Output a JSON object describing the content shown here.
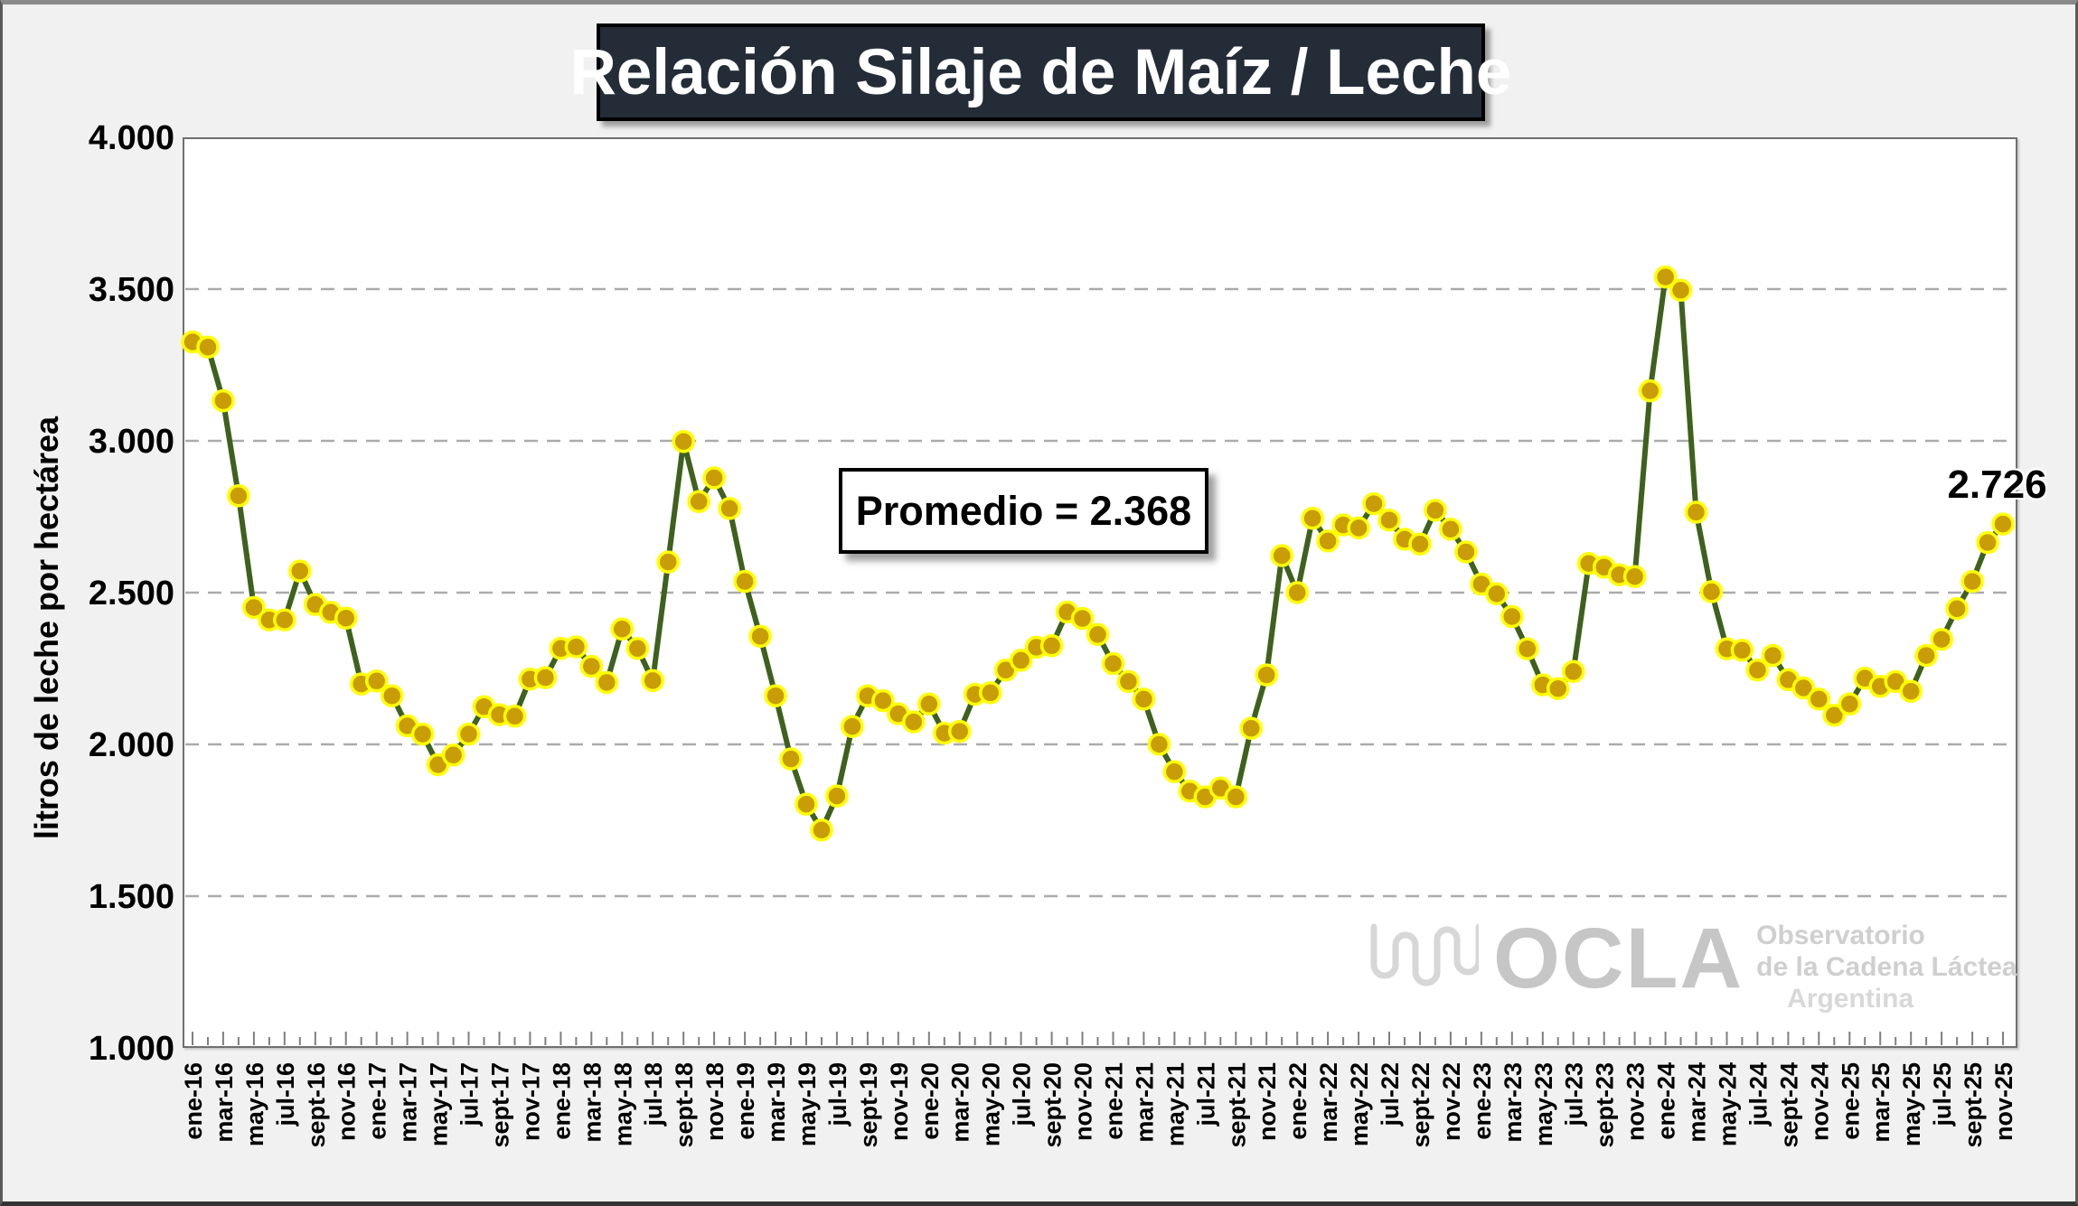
{
  "title": "Relación Silaje de Maíz / Leche",
  "y_axis": {
    "title": "litros de leche por hectárea",
    "tick_labels": [
      "4.000",
      "3.500",
      "3.000",
      "2.500",
      "2.000",
      "1.500",
      "1.000"
    ]
  },
  "annotation": {
    "promedio_label": "Promedio = 2.368",
    "last_value_label": "2.726"
  },
  "watermark": {
    "brand": "OCLA",
    "line1": "Observatorio",
    "line2": "de la Cadena Láctea",
    "line3": "Argentina"
  },
  "colors": {
    "line": "#3E611E",
    "marker_fill": "#C89D08",
    "marker_border": "#FFFF00",
    "title_bg": "#242C38",
    "title_text": "#FFFFFF",
    "gridline": "#ABABAB",
    "plot_bg": "#FFFFFF",
    "page_bg": "#F1F1F1",
    "watermark_gray": "#C6C6C6"
  },
  "chart_data": {
    "type": "line",
    "title": "Relación Silaje de Maíz / Leche",
    "xlabel": "",
    "ylabel": "litros de leche por hectárea",
    "ylim": [
      1000,
      4000
    ],
    "y_ticks": [
      4000,
      3500,
      3000,
      2500,
      2000,
      1500,
      1000
    ],
    "grid": "horizontal-dashed",
    "legend": "none",
    "frequency": "monthly",
    "x_start": "ene-16",
    "x_end": "nov-25",
    "average": 2368,
    "last_value": 2726,
    "x_tick_labels": [
      "ene-16",
      "mar-16",
      "may-16",
      "jul-16",
      "sept-16",
      "nov-16",
      "ene-17",
      "mar-17",
      "may-17",
      "jul-17",
      "sept-17",
      "nov-17",
      "ene-18",
      "mar-18",
      "may-18",
      "jul-18",
      "sept-18",
      "nov-18",
      "ene-19",
      "mar-19",
      "may-19",
      "jul-19",
      "sept-19",
      "nov-19",
      "ene-20",
      "mar-20",
      "may-20",
      "jul-20",
      "sept-20",
      "nov-20",
      "ene-21",
      "mar-21",
      "may-21",
      "jul-21",
      "sept-21",
      "nov-21",
      "ene-22",
      "mar-22",
      "may-22",
      "jul-22",
      "sept-22",
      "nov-22",
      "ene-23",
      "mar-23",
      "may-23",
      "jul-23",
      "sept-23",
      "nov-23",
      "ene-24",
      "mar-24",
      "may-24",
      "jul-24",
      "sept-24",
      "nov-24",
      "ene-25",
      "mar-25",
      "may-25",
      "jul-25",
      "sept-25",
      "nov-25"
    ],
    "values": [
      3326,
      3309,
      3132,
      2819,
      2451,
      2410,
      2410,
      2571,
      2461,
      2435,
      2416,
      2199,
      2209,
      2160,
      2061,
      2034,
      1933,
      1965,
      2034,
      2124,
      2098,
      2093,
      2215,
      2220,
      2316,
      2321,
      2257,
      2204,
      2380,
      2316,
      2210,
      2601,
      2998,
      2800,
      2878,
      2777,
      2537,
      2356,
      2160,
      1952,
      1803,
      1718,
      1830,
      2059,
      2160,
      2144,
      2101,
      2074,
      2133,
      2037,
      2043,
      2165,
      2170,
      2245,
      2277,
      2320,
      2325,
      2436,
      2415,
      2362,
      2266,
      2207,
      2149,
      2000,
      1910,
      1846,
      1827,
      1856,
      1827,
      2053,
      2229,
      2622,
      2500,
      2745,
      2670,
      2723,
      2713,
      2793,
      2739,
      2676,
      2660,
      2771,
      2709,
      2634,
      2528,
      2496,
      2421,
      2315,
      2196,
      2184,
      2240,
      2596,
      2584,
      2559,
      2553,
      3165,
      3540,
      3496,
      2765,
      2503,
      2315,
      2310,
      2245,
      2293,
      2213,
      2186,
      2149,
      2096,
      2133,
      2218,
      2191,
      2207,
      2175,
      2293,
      2346,
      2447,
      2537,
      2665,
      2726
    ]
  }
}
